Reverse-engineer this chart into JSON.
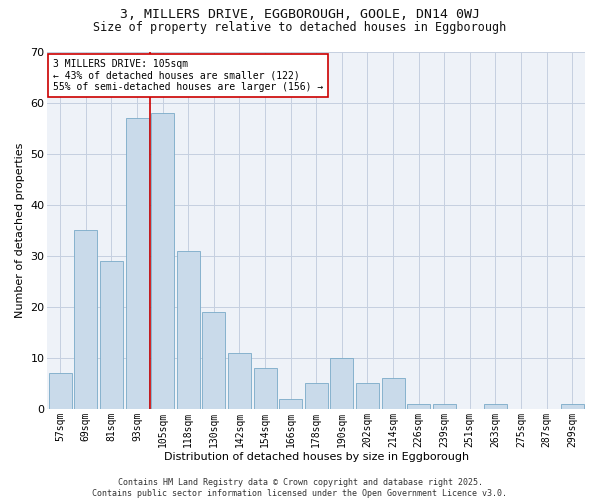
{
  "title1": "3, MILLERS DRIVE, EGGBOROUGH, GOOLE, DN14 0WJ",
  "title2": "Size of property relative to detached houses in Eggborough",
  "xlabel": "Distribution of detached houses by size in Eggborough",
  "ylabel": "Number of detached properties",
  "categories": [
    "57sqm",
    "69sqm",
    "81sqm",
    "93sqm",
    "105sqm",
    "118sqm",
    "130sqm",
    "142sqm",
    "154sqm",
    "166sqm",
    "178sqm",
    "190sqm",
    "202sqm",
    "214sqm",
    "226sqm",
    "239sqm",
    "251sqm",
    "263sqm",
    "275sqm",
    "287sqm",
    "299sqm"
  ],
  "values": [
    7,
    35,
    29,
    57,
    58,
    31,
    19,
    11,
    8,
    2,
    5,
    10,
    5,
    6,
    1,
    1,
    0,
    1,
    0,
    0,
    1
  ],
  "bar_color": "#c9daea",
  "bar_edge_color": "#7aaac8",
  "vline_index": 4,
  "vline_color": "#cc0000",
  "annotation_line1": "3 MILLERS DRIVE: 105sqm",
  "annotation_line2": "← 43% of detached houses are smaller (122)",
  "annotation_line3": "55% of semi-detached houses are larger (156) →",
  "annotation_box_facecolor": "#ffffff",
  "annotation_box_edgecolor": "#cc0000",
  "ylim": [
    0,
    70
  ],
  "yticks": [
    0,
    10,
    20,
    30,
    40,
    50,
    60,
    70
  ],
  "footer": "Contains HM Land Registry data © Crown copyright and database right 2025.\nContains public sector information licensed under the Open Government Licence v3.0.",
  "bg_color": "#ffffff",
  "plot_bg_color": "#eef2f8",
  "grid_color": "#c5cfe0"
}
